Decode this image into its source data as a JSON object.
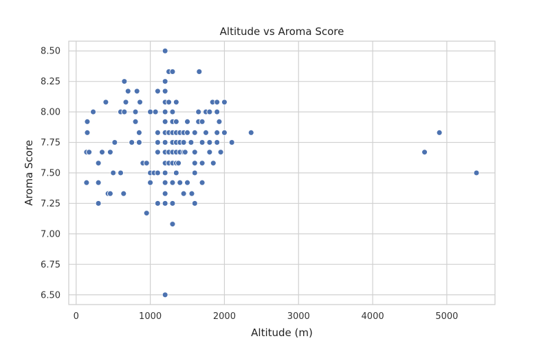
{
  "chart_data": {
    "type": "scatter",
    "title": "Altitude vs Aroma Score",
    "xlabel": "Altitude (m)",
    "ylabel": "Aroma Score",
    "xlim": [
      -100,
      5650
    ],
    "ylim": [
      6.42,
      8.58
    ],
    "xticks": [
      0,
      1000,
      2000,
      3000,
      4000,
      5000
    ],
    "yticks": [
      6.5,
      6.75,
      7.0,
      7.25,
      7.5,
      7.75,
      8.0,
      8.25,
      8.5
    ],
    "xtick_labels": [
      "0",
      "1000",
      "2000",
      "3000",
      "4000",
      "5000"
    ],
    "ytick_labels": [
      "6.50",
      "6.75",
      "7.00",
      "7.25",
      "7.50",
      "7.75",
      "8.00",
      "8.25",
      "8.50"
    ],
    "grid": true,
    "marker_color": "#4c72b0",
    "points": [
      [
        1200,
        8.5
      ],
      [
        1250,
        8.33
      ],
      [
        1300,
        8.33
      ],
      [
        1660,
        8.33
      ],
      [
        650,
        8.25
      ],
      [
        1200,
        8.25
      ],
      [
        700,
        8.17
      ],
      [
        820,
        8.17
      ],
      [
        1100,
        8.17
      ],
      [
        1200,
        8.17
      ],
      [
        400,
        8.08
      ],
      [
        670,
        8.08
      ],
      [
        860,
        8.08
      ],
      [
        1200,
        8.08
      ],
      [
        1250,
        8.08
      ],
      [
        1350,
        8.08
      ],
      [
        1840,
        8.08
      ],
      [
        1900,
        8.08
      ],
      [
        2000,
        8.08
      ],
      [
        230,
        8.0
      ],
      [
        600,
        8.0
      ],
      [
        650,
        8.0
      ],
      [
        800,
        8.0
      ],
      [
        1000,
        8.0
      ],
      [
        1070,
        8.0
      ],
      [
        1200,
        8.0
      ],
      [
        1300,
        8.0
      ],
      [
        1650,
        8.0
      ],
      [
        1750,
        8.0
      ],
      [
        1800,
        8.0
      ],
      [
        1900,
        8.0
      ],
      [
        150,
        7.92
      ],
      [
        800,
        7.92
      ],
      [
        1200,
        7.92
      ],
      [
        1300,
        7.92
      ],
      [
        1350,
        7.92
      ],
      [
        1500,
        7.92
      ],
      [
        1650,
        7.92
      ],
      [
        1700,
        7.92
      ],
      [
        1930,
        7.92
      ],
      [
        150,
        7.83
      ],
      [
        850,
        7.83
      ],
      [
        1100,
        7.83
      ],
      [
        1200,
        7.83
      ],
      [
        1250,
        7.83
      ],
      [
        1300,
        7.83
      ],
      [
        1350,
        7.83
      ],
      [
        1400,
        7.83
      ],
      [
        1450,
        7.83
      ],
      [
        1500,
        7.83
      ],
      [
        1600,
        7.83
      ],
      [
        1750,
        7.83
      ],
      [
        1900,
        7.83
      ],
      [
        2000,
        7.83
      ],
      [
        2360,
        7.83
      ],
      [
        4900,
        7.83
      ],
      [
        520,
        7.75
      ],
      [
        750,
        7.75
      ],
      [
        850,
        7.75
      ],
      [
        1100,
        7.75
      ],
      [
        1200,
        7.75
      ],
      [
        1300,
        7.75
      ],
      [
        1350,
        7.75
      ],
      [
        1400,
        7.75
      ],
      [
        1450,
        7.75
      ],
      [
        1550,
        7.75
      ],
      [
        1700,
        7.75
      ],
      [
        1800,
        7.75
      ],
      [
        1900,
        7.75
      ],
      [
        2100,
        7.75
      ],
      [
        140,
        7.67
      ],
      [
        175,
        7.67
      ],
      [
        350,
        7.67
      ],
      [
        460,
        7.67
      ],
      [
        1100,
        7.67
      ],
      [
        1200,
        7.67
      ],
      [
        1250,
        7.67
      ],
      [
        1300,
        7.67
      ],
      [
        1350,
        7.67
      ],
      [
        1400,
        7.67
      ],
      [
        1450,
        7.67
      ],
      [
        1470,
        7.67
      ],
      [
        1600,
        7.67
      ],
      [
        1800,
        7.67
      ],
      [
        1950,
        7.67
      ],
      [
        4700,
        7.67
      ],
      [
        300,
        7.58
      ],
      [
        900,
        7.58
      ],
      [
        950,
        7.58
      ],
      [
        1200,
        7.58
      ],
      [
        1250,
        7.58
      ],
      [
        1300,
        7.58
      ],
      [
        1350,
        7.58
      ],
      [
        1380,
        7.58
      ],
      [
        1600,
        7.58
      ],
      [
        1700,
        7.58
      ],
      [
        1850,
        7.58
      ],
      [
        500,
        7.5
      ],
      [
        600,
        7.5
      ],
      [
        1000,
        7.5
      ],
      [
        1050,
        7.5
      ],
      [
        1100,
        7.5
      ],
      [
        1200,
        7.5
      ],
      [
        1350,
        7.5
      ],
      [
        1600,
        7.5
      ],
      [
        5400,
        7.5
      ],
      [
        140,
        7.42
      ],
      [
        300,
        7.42
      ],
      [
        1000,
        7.42
      ],
      [
        1200,
        7.42
      ],
      [
        1300,
        7.42
      ],
      [
        1400,
        7.42
      ],
      [
        1500,
        7.42
      ],
      [
        1700,
        7.42
      ],
      [
        430,
        7.33
      ],
      [
        460,
        7.33
      ],
      [
        640,
        7.33
      ],
      [
        1200,
        7.33
      ],
      [
        1450,
        7.33
      ],
      [
        1560,
        7.33
      ],
      [
        300,
        7.25
      ],
      [
        1100,
        7.25
      ],
      [
        1200,
        7.25
      ],
      [
        1300,
        7.25
      ],
      [
        1600,
        7.25
      ],
      [
        950,
        7.17
      ],
      [
        1300,
        7.08
      ],
      [
        1200,
        6.5
      ]
    ]
  }
}
